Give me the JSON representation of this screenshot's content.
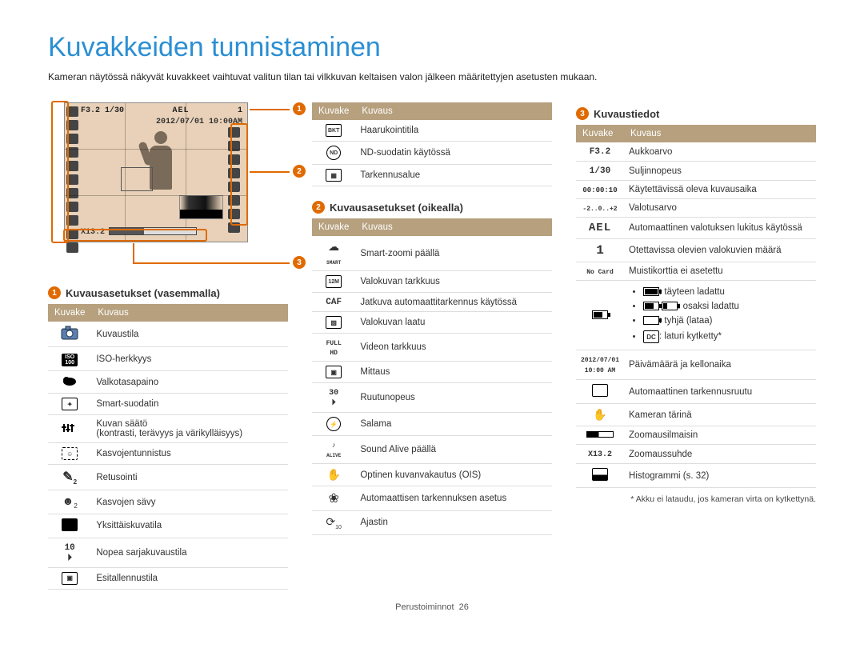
{
  "title": "Kuvakkeiden tunnistaminen",
  "intro": "Kameran näytössä näkyvät kuvakkeet vaihtuvat valitun tilan tai vilkkuvan keltaisen valon jälkeen määritettyjen asetusten mukaan.",
  "screenshot": {
    "topbar_left": "F3.2 1/30",
    "topbar_mid": "AEL",
    "topbar_right": "1",
    "date": "2012/07/01 10:00AM",
    "zoom_text": "X13.2",
    "markers": {
      "1": "1",
      "2": "2",
      "3": "3"
    }
  },
  "table_headers": {
    "icon": "Kuvake",
    "desc": "Kuvaus"
  },
  "section1": {
    "title": "Kuvausasetukset (vasemmalla)",
    "rows": [
      {
        "icon": "camera",
        "label": "Kuvaustila"
      },
      {
        "icon": "iso",
        "label": "ISO-herkkyys"
      },
      {
        "icon": "cloud",
        "label": "Valkotasapaino"
      },
      {
        "icon": "smartfilter",
        "label": "Smart-suodatin"
      },
      {
        "icon": "sliders",
        "label": "Kuvan säätö\n(kontrasti, terävyys ja värikylläisyys)"
      },
      {
        "icon": "face",
        "label": "Kasvojentunnistus"
      },
      {
        "icon": "retouch",
        "label": "Retusointi"
      },
      {
        "icon": "facetone",
        "label": "Kasvojen sävy"
      },
      {
        "icon": "single",
        "label": "Yksittäiskuvatila"
      },
      {
        "icon": "burst",
        "label": "Nopea sarjakuvaustila"
      },
      {
        "icon": "prerec",
        "label": "Esitallennustila"
      }
    ]
  },
  "section1b": {
    "rows": [
      {
        "icon": "bkt",
        "label": "Haarukointitila"
      },
      {
        "icon": "nd",
        "label": "ND-suodatin käytössä"
      },
      {
        "icon": "grid",
        "label": "Tarkennusalue"
      }
    ]
  },
  "section2": {
    "title": "Kuvausasetukset (oikealla)",
    "rows": [
      {
        "icon": "smart",
        "label": "Smart-zoomi päällä"
      },
      {
        "icon": "12m",
        "label": "Valokuvan tarkkuus"
      },
      {
        "icon": "caf",
        "label": "Jatkuva automaattitarkennus käytössä"
      },
      {
        "icon": "quality",
        "label": "Valokuvan laatu"
      },
      {
        "icon": "fullhd",
        "label": "Videon tarkkuus"
      },
      {
        "icon": "meter",
        "label": "Mittaus"
      },
      {
        "icon": "30f",
        "label": "Ruutunopeus"
      },
      {
        "icon": "flash",
        "label": "Salama"
      },
      {
        "icon": "alive",
        "label": "Sound Alive päällä"
      },
      {
        "icon": "ois",
        "label": "Optinen kuvanvakautus (OIS)"
      },
      {
        "icon": "flower",
        "label": "Automaattisen tarkennuksen asetus"
      },
      {
        "icon": "timer",
        "label": "Ajastin"
      }
    ]
  },
  "section3": {
    "title": "Kuvaustiedot",
    "rows": [
      {
        "icon": "f3.2",
        "label": "Aukkoarvo"
      },
      {
        "icon": "1/30",
        "label": "Suljinnopeus"
      },
      {
        "icon": "00:00:10",
        "label": "Käytettävissä oleva kuvausaika"
      },
      {
        "icon": "expo",
        "label": "Valotusarvo"
      },
      {
        "icon": "AEL",
        "label": "Automaattinen valotuksen lukitus käytössä"
      },
      {
        "icon": "1",
        "label": "Otettavissa olevien valokuvien määrä"
      },
      {
        "icon": "NoCard",
        "label": "Muistikorttia ei asetettu"
      }
    ],
    "battery": {
      "full": ": täyteen ladattu",
      "partial": ": osaksi ladattu",
      "empty": ": tyhjä (lataa)",
      "dc": ": laturi kytketty*",
      "dc_icon": "DC"
    },
    "rows2": [
      {
        "icon": "datetime",
        "text": "2012/07/01\n10:00 AM",
        "label": "Päivämäärä ja kellonaika"
      },
      {
        "icon": "afbox",
        "label": "Automaattinen tarkennusruutu"
      },
      {
        "icon": "shake",
        "label": "Kameran tärinä"
      },
      {
        "icon": "zoombar",
        "label": "Zoomausilmaisin"
      },
      {
        "icon": "x13.2",
        "text": "X13.2",
        "label": "Zoomaussuhde"
      },
      {
        "icon": "histo",
        "label": "Histogrammi (s. 32)"
      }
    ],
    "footnote": "* Akku ei lataudu, jos kameran virta on kytkettynä."
  },
  "footer": {
    "label": "Perustoiminnot",
    "page": "26"
  },
  "colors": {
    "accent": "#e06a00",
    "title": "#2b8fd3",
    "table_header_bg": "#b6a07e",
    "lcd_bg": "#e8d1b8"
  }
}
